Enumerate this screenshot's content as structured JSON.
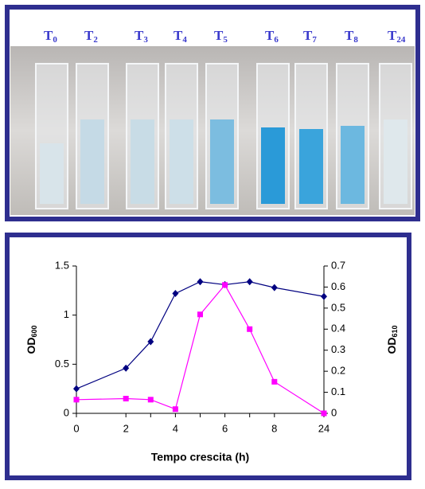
{
  "photo": {
    "labels": [
      {
        "base": "T",
        "sub": "0"
      },
      {
        "base": "T",
        "sub": "2"
      },
      {
        "base": "T",
        "sub": "3"
      },
      {
        "base": "T",
        "sub": "4"
      },
      {
        "base": "T",
        "sub": "5"
      },
      {
        "base": "T",
        "sub": "6"
      },
      {
        "base": "T",
        "sub": "7"
      },
      {
        "base": "T",
        "sub": "8"
      },
      {
        "base": "T",
        "sub": "24"
      }
    ]
  },
  "chart_data": {
    "type": "line",
    "xlabel": "Tempo crescita (h)",
    "ylabel": {
      "base": "OD",
      "sub": "600"
    },
    "y2label": {
      "base": "OD",
      "sub": "610"
    },
    "categories": [
      "0",
      "2",
      null,
      "4",
      null,
      "6",
      null,
      "8",
      "24"
    ],
    "series": [
      {
        "color": "#000080",
        "marker": "diamond",
        "values": [
          0.25,
          0.46,
          0.73,
          1.22,
          1.34,
          1.31,
          1.34,
          1.28,
          1.19
        ]
      },
      {
        "color": "#ff00ff",
        "marker": "square",
        "axis": "y2",
        "values": [
          0.065,
          0.07,
          0.065,
          0.02,
          0.47,
          0.61,
          0.4,
          0.15,
          0.0
        ]
      }
    ],
    "ylim": [
      0,
      1.5
    ],
    "yticks": [
      0,
      0.5,
      1,
      1.5
    ],
    "y2lim": [
      0,
      0.7
    ],
    "y2ticks": [
      0,
      0.1,
      0.2,
      0.3,
      0.4,
      0.5,
      0.6,
      0.7
    ],
    "grid": false
  }
}
